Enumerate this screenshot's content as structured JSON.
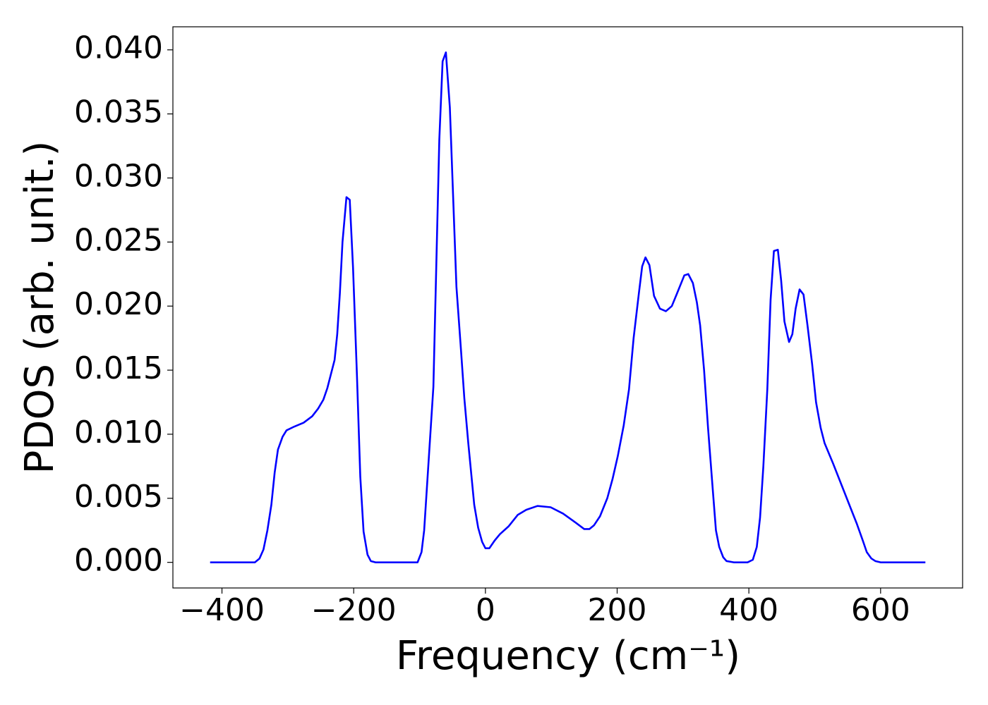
{
  "chart_data": {
    "type": "line",
    "x_label": "Frequency (cm⁻¹)",
    "y_label": "PDOS (arb. unit.)",
    "x": [
      -418,
      -350,
      -343,
      -337,
      -331,
      -325,
      -320,
      -315,
      -308,
      -302,
      -290,
      -276,
      -263,
      -254,
      -246,
      -240,
      -235,
      -229,
      -225,
      -221,
      -217,
      -211,
      -206,
      -201,
      -195,
      -190,
      -185,
      -179,
      -174,
      -167,
      -103,
      -97,
      -93,
      -88,
      -79,
      -70,
      -65,
      -60,
      -54,
      -44,
      -37,
      -32,
      -26,
      -17,
      -11,
      -5,
      0,
      6,
      14,
      22,
      35,
      49,
      62,
      79,
      99,
      118,
      137,
      150,
      158,
      165,
      174,
      185,
      193,
      201,
      210,
      218,
      225,
      233,
      238,
      243,
      249,
      256,
      265,
      274,
      283,
      291,
      302,
      308,
      315,
      321,
      326,
      332,
      338,
      345,
      350,
      355,
      361,
      366,
      377,
      398,
      406,
      412,
      417,
      422,
      428,
      433,
      438,
      444,
      449,
      454,
      461,
      466,
      471,
      477,
      483,
      489,
      496,
      502,
      509,
      515,
      528,
      541,
      554,
      564,
      573,
      579,
      586,
      592,
      600,
      668
    ],
    "series": [
      {
        "color": "#0000ff",
        "values": [
          0,
          0,
          0.0003,
          0.001,
          0.0025,
          0.0045,
          0.007,
          0.0088,
          0.0098,
          0.0103,
          0.0106,
          0.0109,
          0.0114,
          0.012,
          0.0127,
          0.0136,
          0.0146,
          0.0158,
          0.0178,
          0.021,
          0.025,
          0.0285,
          0.0283,
          0.023,
          0.0145,
          0.0067,
          0.0024,
          0.0006,
          0.0001,
          0,
          0,
          0.0008,
          0.0025,
          0.0065,
          0.0137,
          0.033,
          0.0391,
          0.0398,
          0.0355,
          0.0215,
          0.0165,
          0.0128,
          0.0093,
          0.0045,
          0.0027,
          0.0016,
          0.0011,
          0.0011,
          0.0017,
          0.0022,
          0.0028,
          0.0037,
          0.0041,
          0.0044,
          0.0043,
          0.0038,
          0.0031,
          0.0026,
          0.0026,
          0.0029,
          0.0036,
          0.005,
          0.0065,
          0.0083,
          0.0107,
          0.0135,
          0.0175,
          0.021,
          0.0231,
          0.0238,
          0.0232,
          0.0208,
          0.0198,
          0.0196,
          0.02,
          0.021,
          0.0224,
          0.0225,
          0.0218,
          0.0203,
          0.0185,
          0.015,
          0.0105,
          0.0058,
          0.0025,
          0.0012,
          0.0004,
          0.0001,
          0,
          0,
          0.0002,
          0.0012,
          0.0035,
          0.0075,
          0.0135,
          0.0205,
          0.0243,
          0.0244,
          0.022,
          0.0188,
          0.0172,
          0.0178,
          0.0198,
          0.0213,
          0.0209,
          0.0185,
          0.0155,
          0.0125,
          0.0105,
          0.0093,
          0.0077,
          0.006,
          0.0043,
          0.003,
          0.0017,
          0.0008,
          0.0003,
          0.0001,
          0,
          0
        ]
      }
    ],
    "xlim": [
      -474.5,
      724.5
    ],
    "ylim": [
      -0.002,
      0.0418
    ],
    "xticks": [
      {
        "value": -400,
        "label": "−400"
      },
      {
        "value": -200,
        "label": "−200"
      },
      0,
      200,
      400,
      600
    ],
    "yticks": [
      {
        "value": 0,
        "label": "0.000"
      },
      {
        "value": 0.005,
        "label": "0.005"
      },
      {
        "value": 0.01,
        "label": "0.010"
      },
      {
        "value": 0.015,
        "label": "0.015"
      },
      {
        "value": 0.02,
        "label": "0.020"
      },
      {
        "value": 0.025,
        "label": "0.025"
      },
      {
        "value": 0.03,
        "label": "0.030"
      },
      {
        "value": 0.035,
        "label": "0.035"
      },
      {
        "value": 0.04,
        "label": "0.040"
      }
    ]
  }
}
